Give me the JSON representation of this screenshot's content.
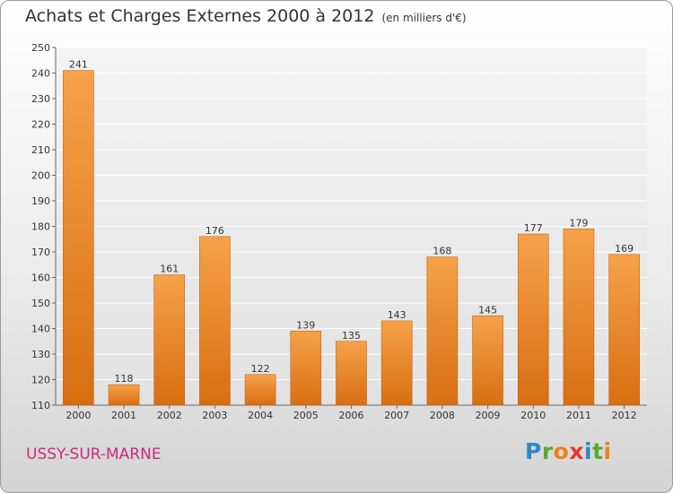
{
  "header": {
    "title": "Achats et Charges Externes 2000 à 2012",
    "unit": "(en milliers d'€)"
  },
  "footer": {
    "commune": "USSY-SUR-MARNE",
    "logo_letters": [
      {
        "ch": "P",
        "color": "#2e86c8"
      },
      {
        "ch": "r",
        "color": "#5aa832"
      },
      {
        "ch": "o",
        "color": "#f07f1a"
      },
      {
        "ch": "x",
        "color": "#e23a2a"
      },
      {
        "ch": "i",
        "color": "#2e86c8"
      },
      {
        "ch": "t",
        "color": "#5aa832"
      },
      {
        "ch": "i",
        "color": "#f07f1a"
      }
    ]
  },
  "chart_data": {
    "type": "bar",
    "title": "Achats et Charges Externes 2000 à 2012",
    "categories": [
      "2000",
      "2001",
      "2002",
      "2003",
      "2004",
      "2005",
      "2006",
      "2007",
      "2008",
      "2009",
      "2010",
      "2011",
      "2012"
    ],
    "values": [
      241,
      118,
      161,
      176,
      122,
      139,
      135,
      143,
      168,
      145,
      177,
      179,
      169
    ],
    "ylim": [
      110,
      250
    ],
    "yticks": [
      110,
      120,
      130,
      140,
      150,
      160,
      170,
      180,
      190,
      200,
      210,
      220,
      230,
      240,
      250
    ],
    "grid": true,
    "bar_color": "#f08a2a"
  }
}
